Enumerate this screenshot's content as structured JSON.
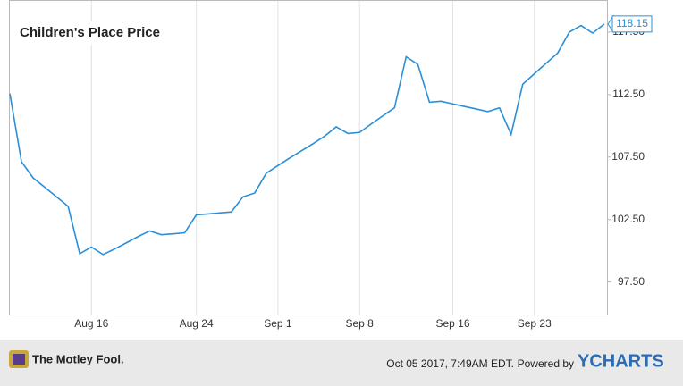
{
  "chart_data": {
    "type": "line",
    "title": "Children's Place Price",
    "categories": [
      null,
      null,
      null,
      null,
      null,
      null,
      null,
      "Aug 16",
      null,
      null,
      null,
      null,
      null,
      null,
      null,
      null,
      "Aug 24",
      null,
      null,
      null,
      null,
      null,
      null,
      "Sep 1",
      null,
      null,
      null,
      null,
      null,
      null,
      "Sep 8",
      null,
      null,
      null,
      null,
      null,
      null,
      null,
      "Sep 16",
      null,
      null,
      null,
      null,
      null,
      null,
      "Sep 23",
      null,
      null,
      null,
      null,
      null,
      null
    ],
    "values": [
      112.58,
      107.12,
      105.83,
      105.08,
      104.32,
      103.56,
      99.77,
      100.3,
      99.7,
      100.15,
      100.64,
      101.14,
      101.59,
      101.29,
      101.36,
      101.44,
      102.88,
      102.95,
      103.03,
      103.11,
      104.32,
      104.62,
      106.21,
      106.82,
      107.42,
      107.99,
      108.56,
      109.17,
      109.92,
      109.39,
      109.47,
      110.15,
      110.8,
      111.44,
      115.53,
      114.92,
      111.89,
      111.97,
      111.76,
      111.55,
      111.35,
      111.14,
      111.44,
      109.32,
      113.33,
      114.17,
      115.0,
      115.83,
      117.5,
      118.03,
      117.42,
      118.15
    ],
    "color": "#2a8fd8",
    "ylim": [
      94.9,
      120.0
    ],
    "yticks": [
      {
        "value": 97.5,
        "label": "97.50"
      },
      {
        "value": 102.5,
        "label": "102.50"
      },
      {
        "value": 107.5,
        "label": "107.50"
      },
      {
        "value": 112.5,
        "label": "112.50"
      },
      {
        "value": 117.5,
        "label": "117.50"
      }
    ],
    "grid": "x"
  },
  "footer": {
    "brand": "The Motley Fool.",
    "timestamp": "Oct 05 2017, 7:49AM EDT.",
    "powered_by": "Powered by",
    "logo": "YCHARTS"
  }
}
